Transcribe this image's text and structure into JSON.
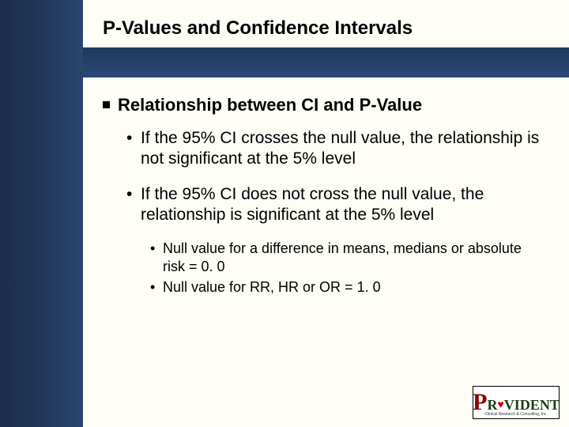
{
  "slide": {
    "title": "P-Values and Confidence Intervals",
    "section_header": "Relationship between CI and P-Value",
    "bullets_l1": [
      "If the 95% CI crosses the null value, the relationship is not significant at the 5% level",
      "If the 95% CI does not cross the null value, the relationship is significant at the 5% level"
    ],
    "bullets_l2": [
      "Null value for a difference in means, medians or absolute risk = 0. 0",
      "Null value for RR, HR or OR = 1. 0"
    ]
  },
  "logo": {
    "brand_p": "P",
    "brand_r": "R",
    "brand_rest": "VIDENT",
    "heart": "♥",
    "subtitle": "Clinical Research & Consulting, Inc."
  },
  "styling": {
    "background": "#fefef6",
    "sidebar_gradient": [
      "#1a2d4a",
      "#2a4570"
    ],
    "header_gradient": [
      "#1f3a5f",
      "#2a4778"
    ],
    "title_fontsize": 24,
    "section_fontsize": 22,
    "bullet_l1_fontsize": 21,
    "bullet_l2_fontsize": 18,
    "text_color": "#000000",
    "logo_p_color": "#8b0000",
    "logo_text_color": "#1a3d1a",
    "logo_heart_color": "#c00"
  }
}
